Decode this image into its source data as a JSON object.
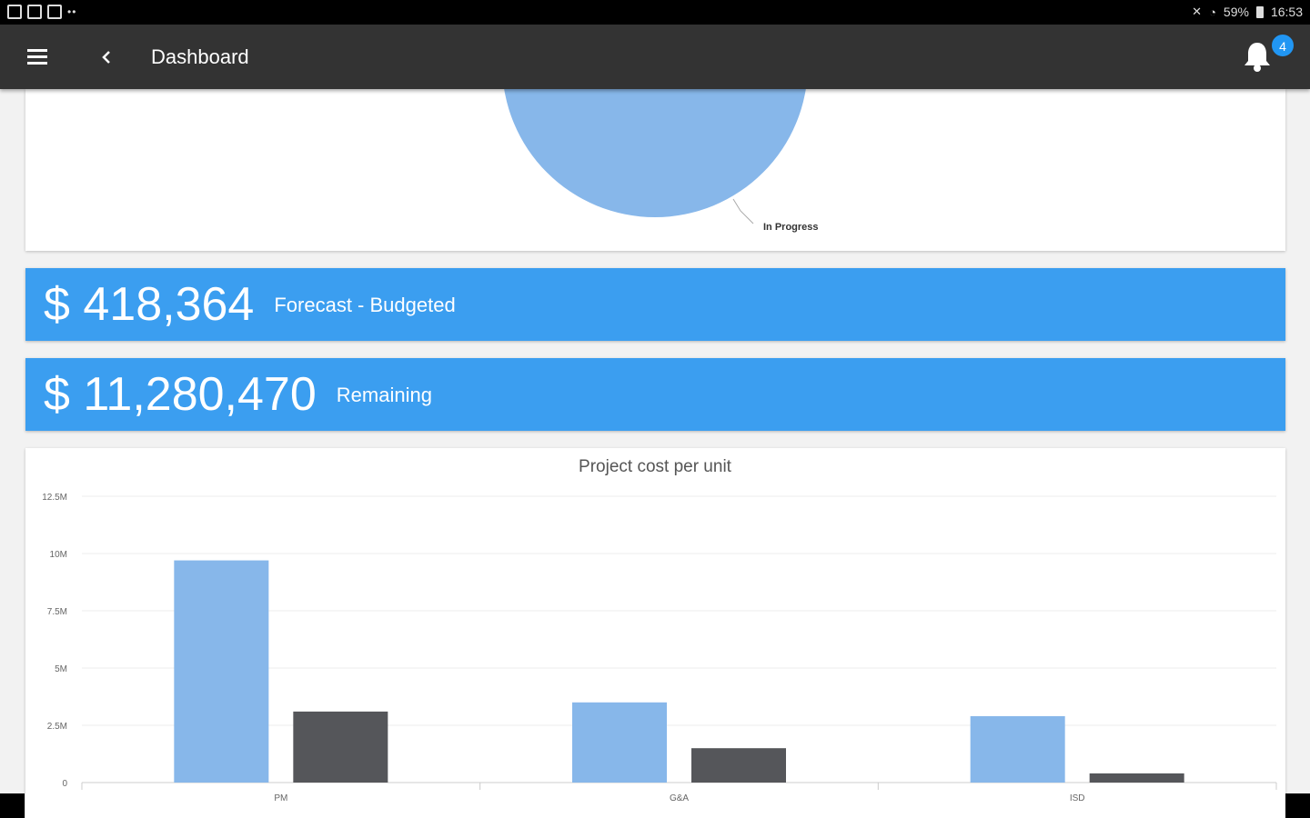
{
  "status_bar": {
    "battery": "59%",
    "time": "16:53"
  },
  "app_bar": {
    "title": "Dashboard",
    "notification_count": "4"
  },
  "pie_chart": {
    "visible_label": "In Progress",
    "colors": {
      "in_progress": "#87b7ea"
    }
  },
  "stats": [
    {
      "value": "$ 418,364",
      "label": "Forecast - Budgeted"
    },
    {
      "value": "$ 11,280,470",
      "label": "Remaining"
    }
  ],
  "chart_data": {
    "type": "bar",
    "title": "Project cost per unit",
    "categories": [
      "PM",
      "G&A",
      "ISD"
    ],
    "series": [
      {
        "values": [
          9.7,
          3.5,
          2.9
        ],
        "color": "#87b7ea"
      },
      {
        "values": [
          3.1,
          1.5,
          0.4
        ],
        "color": "#55565a"
      }
    ],
    "y_ticks": [
      "0",
      "2.5M",
      "5M",
      "7.5M",
      "10M",
      "12.5M"
    ],
    "ylim": [
      0,
      12.5
    ],
    "y_unit": "M",
    "grid": true
  },
  "colors": {
    "app_bar": "#333333",
    "accent": "#3b9ef0",
    "badge": "#2196f3"
  }
}
